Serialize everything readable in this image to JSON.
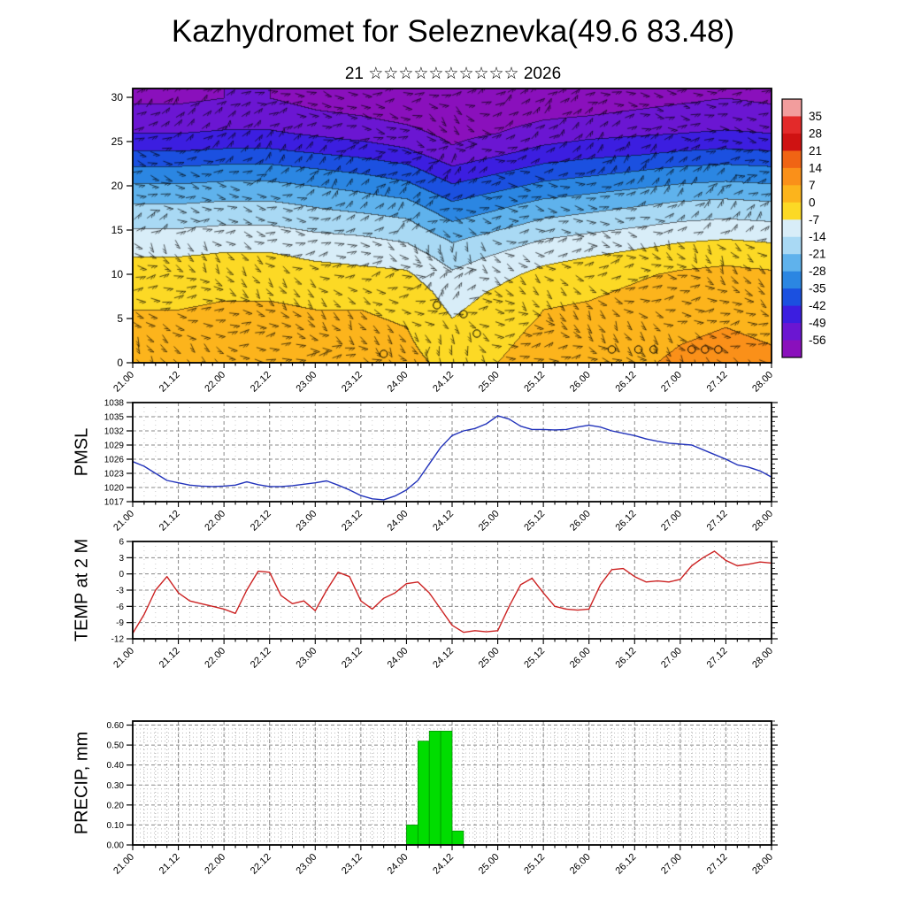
{
  "title": "Kazhydromet for Seleznevka(49.6 83.48)",
  "subtitle": "21 ☆☆☆☆☆☆☆☆☆☆ 2026",
  "ylabels": {
    "pmsl": "PMSL",
    "temp": "TEMP at 2 M",
    "precip": "PRECIP, mm"
  },
  "x_tick_labels": [
    "21.00",
    "21.12",
    "22.00",
    "22.12",
    "23.00",
    "23.12",
    "24.00",
    "24.12",
    "25.00",
    "25.12",
    "26.00",
    "26.12",
    "27.00",
    "27.12",
    "28.00"
  ],
  "chart_data": [
    {
      "type": "heatmap",
      "name": "temperature-wind time-height cross-section",
      "ylabel": "model level",
      "yticks": [
        0,
        5,
        10,
        15,
        20,
        25,
        30
      ],
      "ylim": [
        0,
        31
      ],
      "x_range": [
        "21.00",
        "28.00"
      ],
      "overlay": "wind barbs, calm circles, contour lines",
      "levels": [
        0,
        2,
        4,
        6,
        8,
        10,
        12,
        14,
        16,
        18,
        20,
        22,
        24,
        26,
        28,
        30
      ],
      "times_hours": [
        0,
        12,
        24,
        36,
        48,
        60,
        72,
        84,
        96,
        108,
        120,
        132,
        144,
        156,
        168
      ],
      "temps": [
        [
          3,
          3,
          4,
          4,
          3,
          3,
          2,
          -2,
          0,
          3,
          4,
          6,
          8,
          9,
          8
        ],
        [
          2,
          2,
          3,
          3,
          2,
          2,
          1,
          -4,
          -1,
          2,
          3,
          5,
          7,
          8,
          7
        ],
        [
          1,
          1,
          2,
          2,
          1,
          1,
          0,
          -6,
          -2,
          1,
          2,
          4,
          6,
          7,
          6
        ],
        [
          0,
          0,
          1,
          1,
          0,
          0,
          -1,
          -8,
          -4,
          0,
          1,
          3,
          5,
          6,
          5
        ],
        [
          -2,
          -2,
          -1,
          -1,
          -2,
          -2,
          -3,
          -10,
          -6,
          -2,
          -1,
          1,
          3,
          4,
          3
        ],
        [
          -4,
          -4,
          -3,
          -3,
          -4,
          -5,
          -6,
          -13,
          -9,
          -5,
          -3,
          -1,
          1,
          2,
          1
        ],
        [
          -7,
          -7,
          -6,
          -6,
          -8,
          -9,
          -10,
          -17,
          -13,
          -9,
          -7,
          -5,
          -3,
          -2,
          -3
        ],
        [
          -11,
          -11,
          -10,
          -10,
          -12,
          -13,
          -15,
          -22,
          -18,
          -14,
          -12,
          -10,
          -8,
          -7,
          -8
        ],
        [
          -16,
          -16,
          -15,
          -15,
          -17,
          -18,
          -20,
          -28,
          -24,
          -20,
          -18,
          -16,
          -14,
          -13,
          -14
        ],
        [
          -21,
          -21,
          -20,
          -20,
          -22,
          -24,
          -26,
          -34,
          -30,
          -26,
          -24,
          -22,
          -20,
          -19,
          -20
        ],
        [
          -27,
          -27,
          -26,
          -26,
          -28,
          -30,
          -33,
          -41,
          -37,
          -33,
          -31,
          -29,
          -27,
          -26,
          -27
        ],
        [
          -34,
          -34,
          -33,
          -33,
          -35,
          -37,
          -40,
          -48,
          -44,
          -40,
          -38,
          -36,
          -34,
          -33,
          -34
        ],
        [
          -42,
          -42,
          -41,
          -41,
          -43,
          -45,
          -48,
          -55,
          -51,
          -47,
          -45,
          -44,
          -42,
          -41,
          -42
        ],
        [
          -49,
          -49,
          -48,
          -48,
          -50,
          -52,
          -54,
          -58,
          -56,
          -53,
          -51,
          -50,
          -49,
          -48,
          -49
        ],
        [
          -54,
          -54,
          -53,
          -53,
          -55,
          -56,
          -58,
          -60,
          -59,
          -57,
          -56,
          -55,
          -54,
          -53,
          -54
        ],
        [
          -57,
          -57,
          -56,
          -56,
          -58,
          -59,
          -60,
          -62,
          -61,
          -60,
          -59,
          -58,
          -57,
          -56,
          -57
        ]
      ],
      "colorbar": {
        "tick_labels": [
          "35",
          "28",
          "21",
          "14",
          "7",
          "0",
          "-7",
          "-14",
          "-21",
          "-28",
          "-35",
          "-42",
          "-49",
          "-56"
        ],
        "bin_size": 7,
        "palette_top_to_bottom": [
          "#f29d9d",
          "#e32a2a",
          "#cf1212",
          "#f06414",
          "#fa9019",
          "#fcb41c",
          "#fcd925",
          "#d8edf8",
          "#a9d9f4",
          "#5fb2ec",
          "#2b86e2",
          "#1b50e0",
          "#3c1ee0",
          "#6b16d2",
          "#8a10bc"
        ]
      }
    },
    {
      "type": "line",
      "name": "PMSL",
      "color": "#2233bb",
      "yticks": [
        1038,
        1035,
        1032,
        1029,
        1026,
        1023,
        1020,
        1017
      ],
      "ylim": [
        1017,
        1038
      ],
      "x_hours_step": 3,
      "values": [
        1025.5,
        1024.5,
        1023.0,
        1021.5,
        1021.0,
        1020.5,
        1020.3,
        1020.2,
        1020.3,
        1020.5,
        1021.2,
        1020.6,
        1020.2,
        1020.2,
        1020.4,
        1020.7,
        1021.0,
        1021.4,
        1020.5,
        1019.5,
        1018.3,
        1017.6,
        1017.4,
        1018.2,
        1019.5,
        1021.5,
        1025.0,
        1028.5,
        1031.0,
        1032.0,
        1032.5,
        1033.5,
        1035.2,
        1034.5,
        1033.0,
        1032.3,
        1032.3,
        1032.2,
        1032.3,
        1032.8,
        1033.2,
        1032.8,
        1032.0,
        1031.5,
        1031.0,
        1030.3,
        1029.8,
        1029.4,
        1029.2,
        1029.0,
        1028.0,
        1027.0,
        1026.0,
        1024.8,
        1024.3,
        1023.5,
        1022.2
      ]
    },
    {
      "type": "line",
      "name": "TEMP at 2 M",
      "color": "#cc2222",
      "yticks": [
        6,
        3,
        0,
        -3,
        -6,
        -9,
        -12
      ],
      "ylim": [
        -12,
        6
      ],
      "x_hours_step": 3,
      "values": [
        -11.0,
        -7.5,
        -3.0,
        -0.5,
        -3.5,
        -5.0,
        -5.5,
        -6.0,
        -6.5,
        -7.3,
        -3.0,
        0.5,
        0.3,
        -4.0,
        -5.5,
        -5.0,
        -6.8,
        -3.0,
        0.3,
        -0.5,
        -5.0,
        -6.5,
        -4.5,
        -3.5,
        -1.8,
        -1.5,
        -3.5,
        -6.5,
        -9.5,
        -10.8,
        -10.5,
        -10.7,
        -10.5,
        -6.0,
        -2.0,
        -0.8,
        -3.5,
        -6.0,
        -6.5,
        -6.7,
        -6.5,
        -2.0,
        0.8,
        1.0,
        -0.5,
        -1.5,
        -1.3,
        -1.5,
        -1.0,
        1.5,
        3.0,
        4.2,
        2.5,
        1.5,
        1.8,
        2.2,
        2.0
      ]
    },
    {
      "type": "bar",
      "name": "PRECIP, mm",
      "color": "#00dd00",
      "yticks": [
        "0.60",
        "0.50",
        "0.40",
        "0.30",
        "0.20",
        "0.10",
        "0.00"
      ],
      "ylim": [
        0,
        0.62
      ],
      "bar_width_hours": 3,
      "values": [
        0,
        0,
        0,
        0,
        0,
        0,
        0,
        0,
        0,
        0,
        0,
        0,
        0,
        0,
        0,
        0,
        0,
        0,
        0,
        0,
        0,
        0,
        0,
        0,
        0.1,
        0.52,
        0.57,
        0.57,
        0.07,
        0,
        0,
        0,
        0,
        0,
        0,
        0,
        0,
        0,
        0,
        0,
        0,
        0,
        0,
        0,
        0,
        0,
        0,
        0,
        0,
        0,
        0,
        0,
        0,
        0,
        0,
        0
      ]
    }
  ]
}
